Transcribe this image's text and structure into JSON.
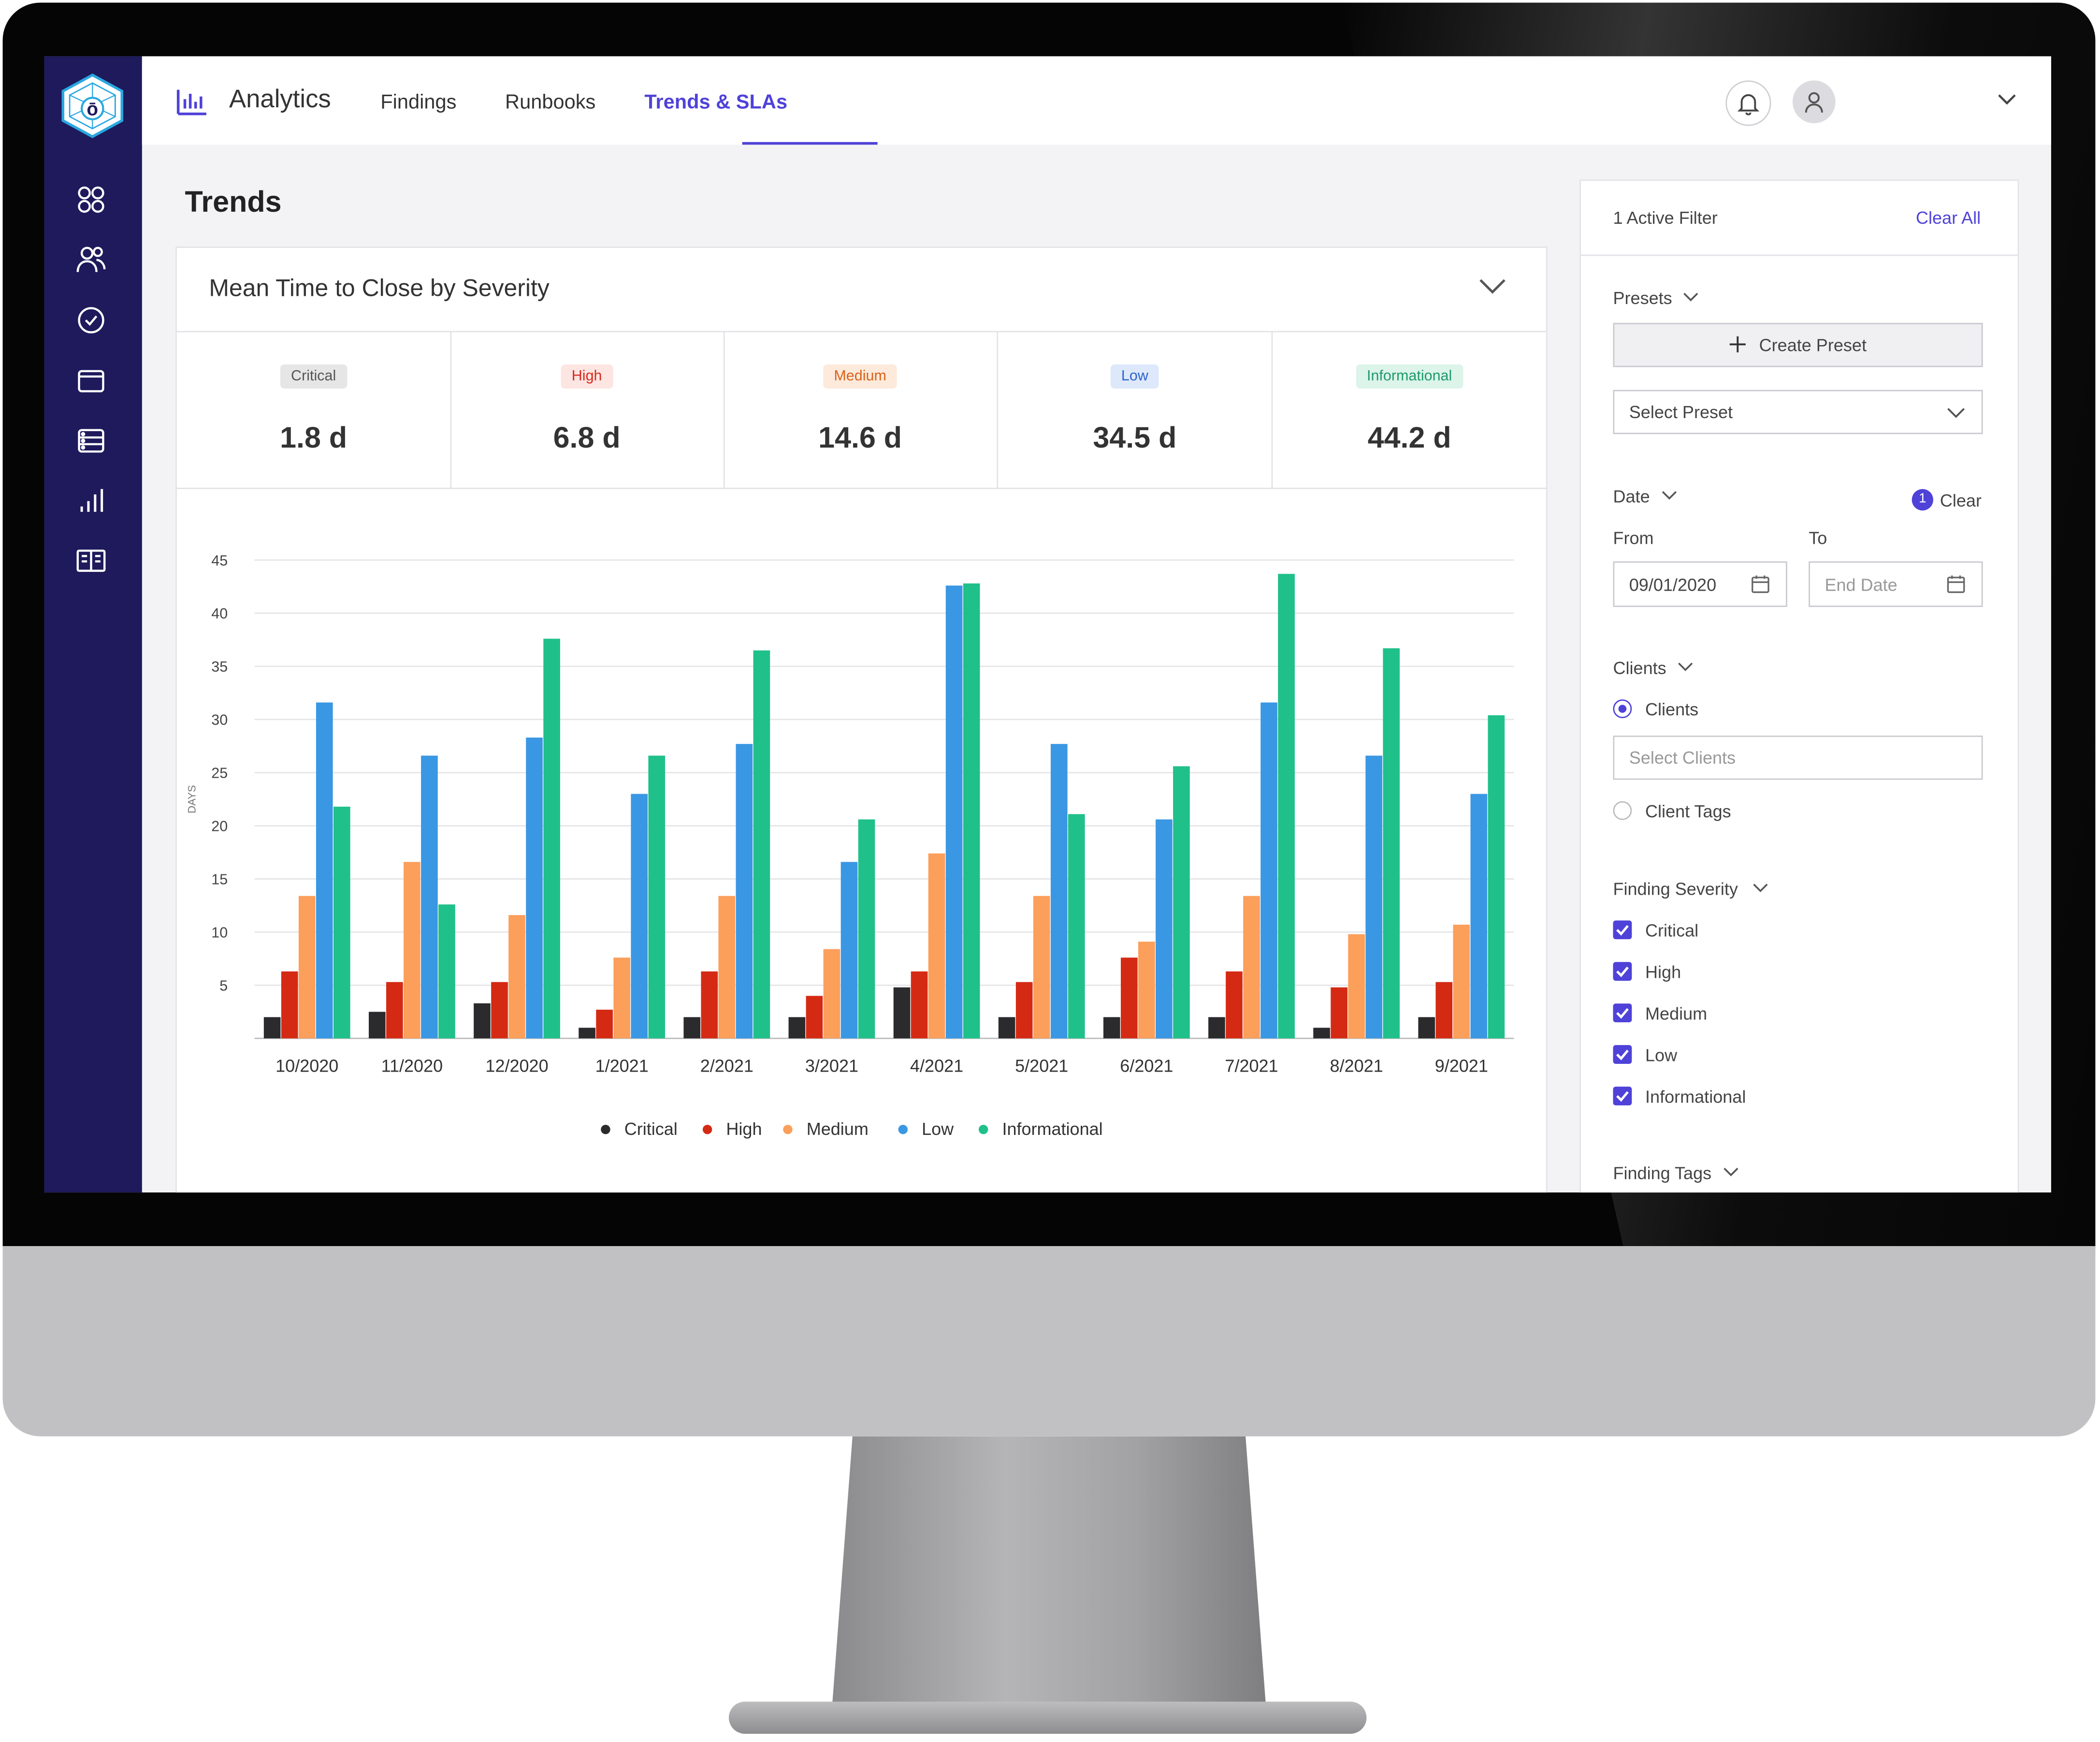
{
  "logo": {
    "glyph": "ō",
    "color": "#2aa7e0"
  },
  "sidebar": {
    "icons": [
      "grid-icon",
      "users-icon",
      "check-circle-icon",
      "folder-icon",
      "database-icon",
      "bar-chart-icon",
      "book-icon"
    ]
  },
  "header": {
    "app_title": "Analytics",
    "tabs": [
      {
        "label": "Findings",
        "active": false
      },
      {
        "label": "Runbooks",
        "active": false
      },
      {
        "label": "Trends & SLAs",
        "active": true
      }
    ],
    "accent": "#4f42d8"
  },
  "page": {
    "title": "Trends"
  },
  "card": {
    "title": "Mean Time to Close by Severity"
  },
  "metrics": [
    {
      "label": "Critical",
      "value": "1.8 d",
      "badge_bg": "#e6e6e6",
      "badge_fg": "#555555"
    },
    {
      "label": "High",
      "value": "6.8 d",
      "badge_bg": "#fde5e2",
      "badge_fg": "#d62a1e"
    },
    {
      "label": "Medium",
      "value": "14.6 d",
      "badge_bg": "#fdeadb",
      "badge_fg": "#d9621b"
    },
    {
      "label": "Low",
      "value": "34.5 d",
      "badge_bg": "#dde8fa",
      "badge_fg": "#2e63c9"
    },
    {
      "label": "Informational",
      "value": "44.2 d",
      "badge_bg": "#dcf4ea",
      "badge_fg": "#1f9a6a"
    }
  ],
  "chart_data": {
    "type": "bar",
    "ylabel": "DAYS",
    "ylim": [
      0,
      45
    ],
    "yticks": [
      5,
      10,
      15,
      20,
      25,
      30,
      35,
      40,
      45
    ],
    "grid": true,
    "legend_position": "bottom-center",
    "categories": [
      "10/2020",
      "11/2020",
      "12/2020",
      "1/2021",
      "2/2021",
      "3/2021",
      "4/2021",
      "5/2021",
      "6/2021",
      "7/2021",
      "8/2021",
      "9/2021"
    ],
    "series": [
      {
        "name": "Critical",
        "color": "#2b2b2e",
        "values": [
          2,
          2.5,
          3.3,
          1,
          2,
          2,
          4.8,
          2,
          2,
          2,
          1,
          2
        ]
      },
      {
        "name": "High",
        "color": "#d42a14",
        "values": [
          6.3,
          5.3,
          5.3,
          2.7,
          6.3,
          4,
          6.3,
          5.3,
          7.6,
          6.3,
          4.8,
          5.3
        ]
      },
      {
        "name": "Medium",
        "color": "#fb9f5b",
        "values": [
          13.4,
          16.6,
          11.6,
          7.6,
          13.4,
          8.4,
          17.4,
          13.4,
          9.1,
          13.4,
          9.8,
          10.7
        ]
      },
      {
        "name": "Low",
        "color": "#3a97e3",
        "values": [
          31.6,
          26.6,
          28.3,
          23,
          27.7,
          16.6,
          42.6,
          27.7,
          20.6,
          31.6,
          26.6,
          23
        ]
      },
      {
        "name": "Informational",
        "color": "#20c08a",
        "values": [
          21.8,
          12.6,
          37.6,
          26.6,
          36.5,
          20.6,
          42.8,
          21.1,
          25.6,
          43.7,
          36.7,
          30.4
        ]
      }
    ]
  },
  "filters": {
    "active_count": "1 Active Filter",
    "clear_all": "Clear All",
    "presets_label": "Presets",
    "create_preset": "Create Preset",
    "select_preset": "Select Preset",
    "date_label": "Date",
    "date_badge": "1",
    "date_clear": "Clear",
    "from_label": "From",
    "to_label": "To",
    "from_value": "09/01/2020",
    "to_placeholder": "End Date",
    "clients_label": "Clients",
    "clients_option": "Clients",
    "clients_placeholder": "Select Clients",
    "client_tags_option": "Client Tags",
    "severity_label": "Finding Severity",
    "severity_options": [
      "Critical",
      "High",
      "Medium",
      "Low",
      "Informational"
    ],
    "tags_label": "Finding Tags"
  }
}
